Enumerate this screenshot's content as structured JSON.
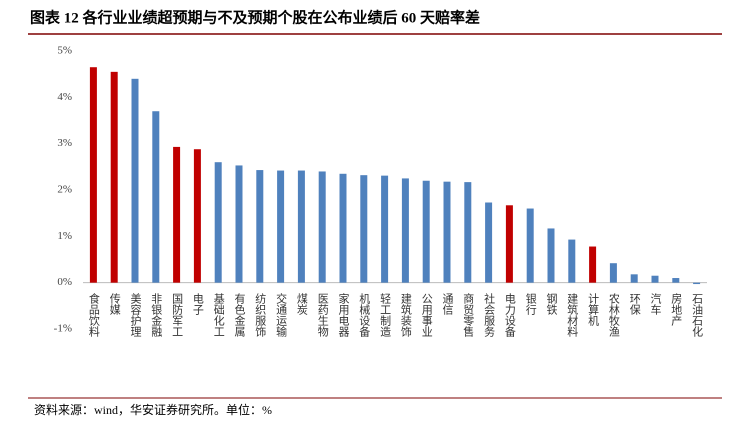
{
  "chart_data": {
    "type": "bar",
    "title": "图表 12 各行业业绩超预期与不及预期个股在公布业绩后 60 天赔率差",
    "source": "资料来源：wind，华安证券研究所。单位：%",
    "categories": [
      "食品饮料",
      "传媒",
      "美容护理",
      "非银金融",
      "国防军工",
      "电子",
      "基础化工",
      "有色金属",
      "纺织服饰",
      "交通运输",
      "煤炭",
      "医药生物",
      "家用电器",
      "机械设备",
      "轻工制造",
      "建筑装饰",
      "公用事业",
      "通信",
      "商贸零售",
      "社会服务",
      "电力设备",
      "银行",
      "钢铁",
      "建筑材料",
      "计算机",
      "农林牧渔",
      "环保",
      "汽车",
      "房地产",
      "石油石化"
    ],
    "values": [
      4.65,
      4.55,
      4.4,
      3.7,
      2.93,
      2.88,
      2.6,
      2.53,
      2.43,
      2.42,
      2.42,
      2.4,
      2.35,
      2.32,
      2.31,
      2.25,
      2.2,
      2.18,
      2.17,
      1.73,
      1.67,
      1.6,
      1.17,
      0.93,
      0.78,
      0.42,
      0.18,
      0.15,
      0.1,
      -0.03
    ],
    "colors": [
      "#c00000",
      "#c00000",
      "#4f81bd",
      "#4f81bd",
      "#c00000",
      "#c00000",
      "#4f81bd",
      "#4f81bd",
      "#4f81bd",
      "#4f81bd",
      "#4f81bd",
      "#4f81bd",
      "#4f81bd",
      "#4f81bd",
      "#4f81bd",
      "#4f81bd",
      "#4f81bd",
      "#4f81bd",
      "#4f81bd",
      "#4f81bd",
      "#c00000",
      "#4f81bd",
      "#4f81bd",
      "#4f81bd",
      "#c00000",
      "#4f81bd",
      "#4f81bd",
      "#4f81bd",
      "#4f81bd",
      "#4f81bd"
    ],
    "ylim": [
      -1,
      5
    ],
    "yticks": [
      {
        "value": -1,
        "label": "-1%"
      },
      {
        "value": 0,
        "label": "0%"
      },
      {
        "value": 1,
        "label": "1%"
      },
      {
        "value": 2,
        "label": "2%"
      },
      {
        "value": 3,
        "label": "3%"
      },
      {
        "value": 4,
        "label": "4%"
      },
      {
        "value": 5,
        "label": "5%"
      }
    ],
    "grid": false
  }
}
